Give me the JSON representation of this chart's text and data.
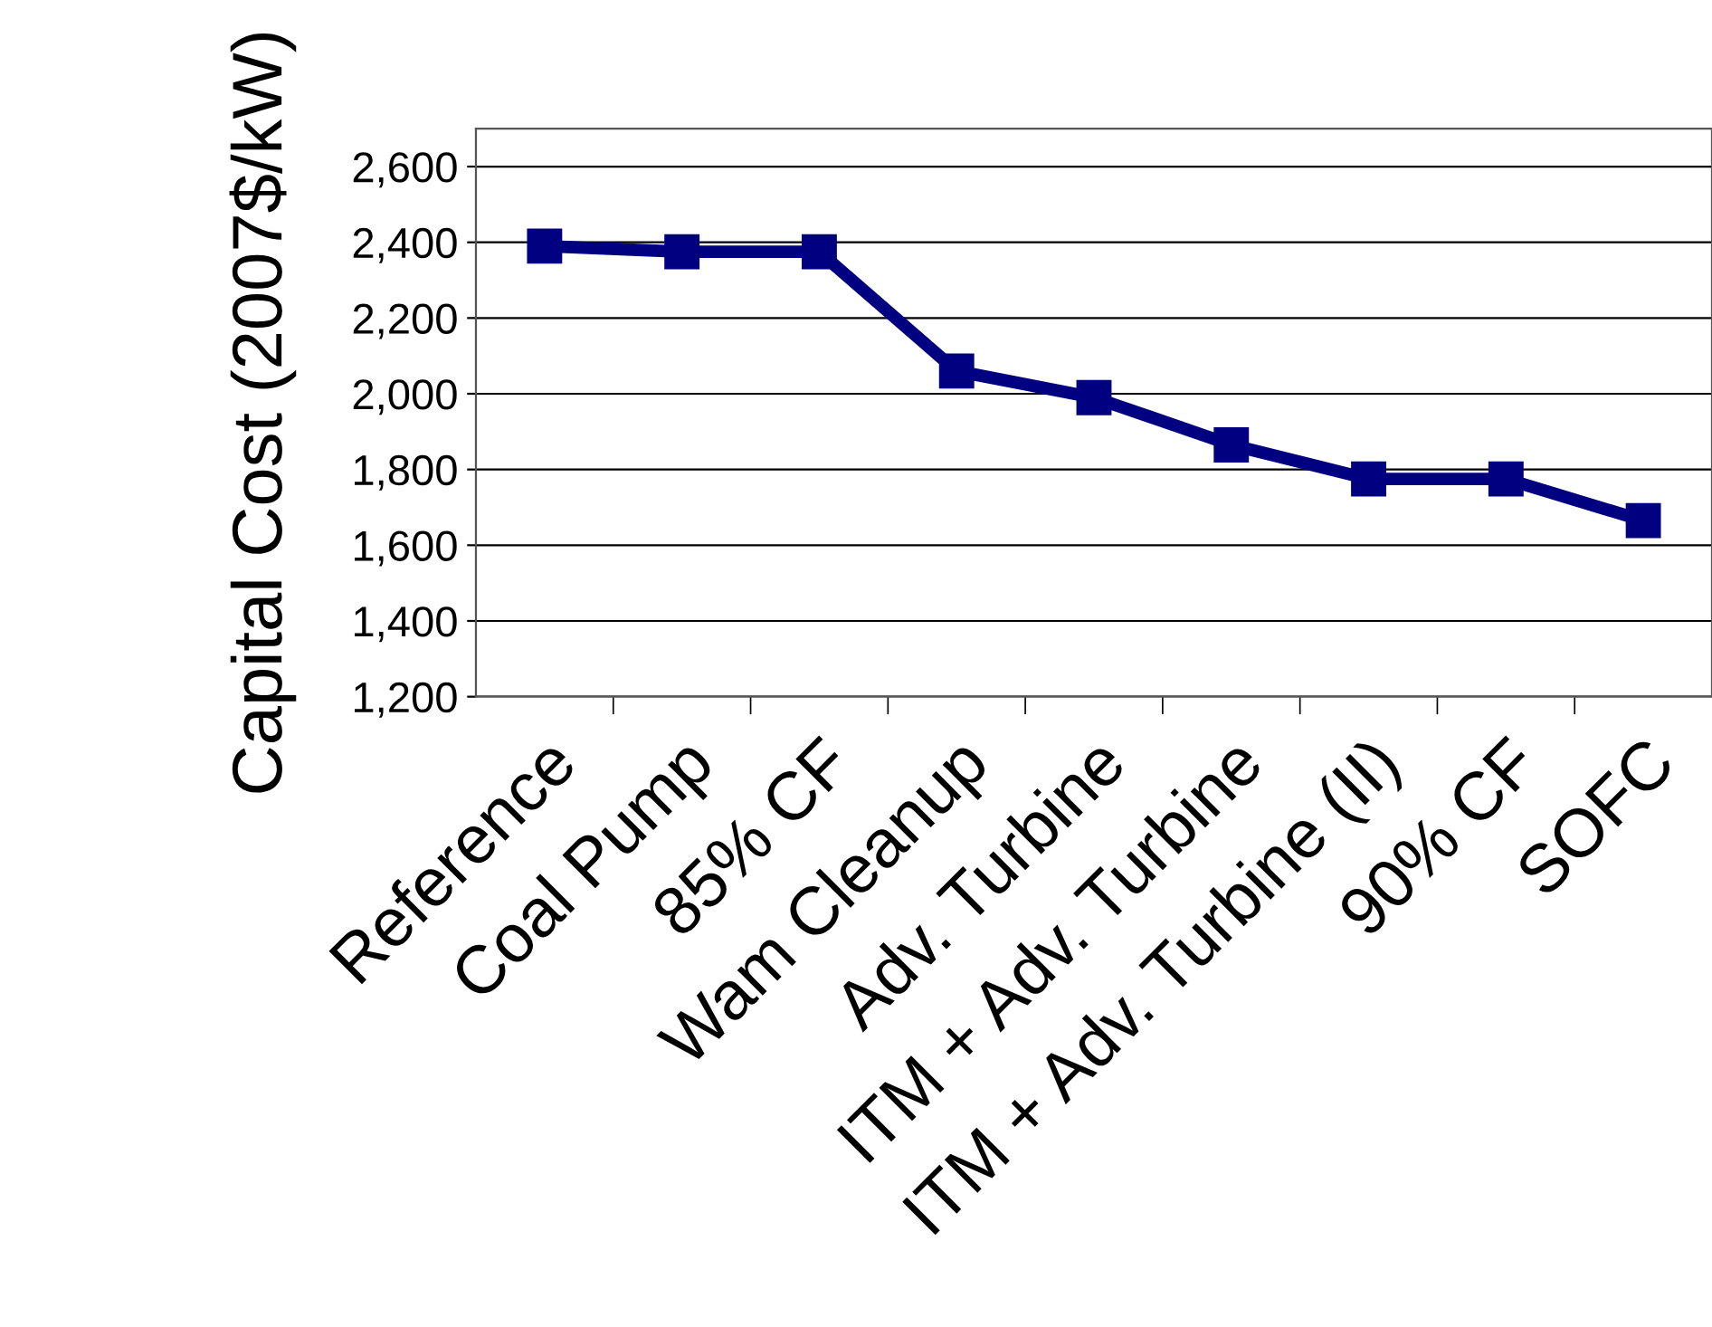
{
  "chart_data": {
    "type": "line",
    "ylabel": "Capital Cost (2007$/kW)",
    "categories": [
      "Reference",
      "Coal Pump",
      "85% CF",
      "Wam Cleanup",
      "Adv. Turbine",
      "ITM + Adv. Turbine",
      "ITM + Adv. Turbine (II)",
      "90% CF",
      "SOFC"
    ],
    "series": [
      {
        "color": "#000080",
        "values": [
          2390,
          2375,
          2375,
          2060,
          1990,
          1865,
          1775,
          1775,
          1665
        ]
      }
    ],
    "ylim": [
      1200,
      2700
    ],
    "yticks": [
      {
        "value": 1200,
        "label": "1,200"
      },
      {
        "value": 1400,
        "label": "1,400"
      },
      {
        "value": 1600,
        "label": "1,600"
      },
      {
        "value": 1800,
        "label": "1,800"
      },
      {
        "value": 2000,
        "label": "2,000"
      },
      {
        "value": 2200,
        "label": "2,200"
      },
      {
        "value": 2400,
        "label": "2,400"
      },
      {
        "value": 2600,
        "label": "2,600"
      }
    ],
    "grid": "y",
    "marker": "square",
    "line_style": "solid",
    "legend": false
  }
}
